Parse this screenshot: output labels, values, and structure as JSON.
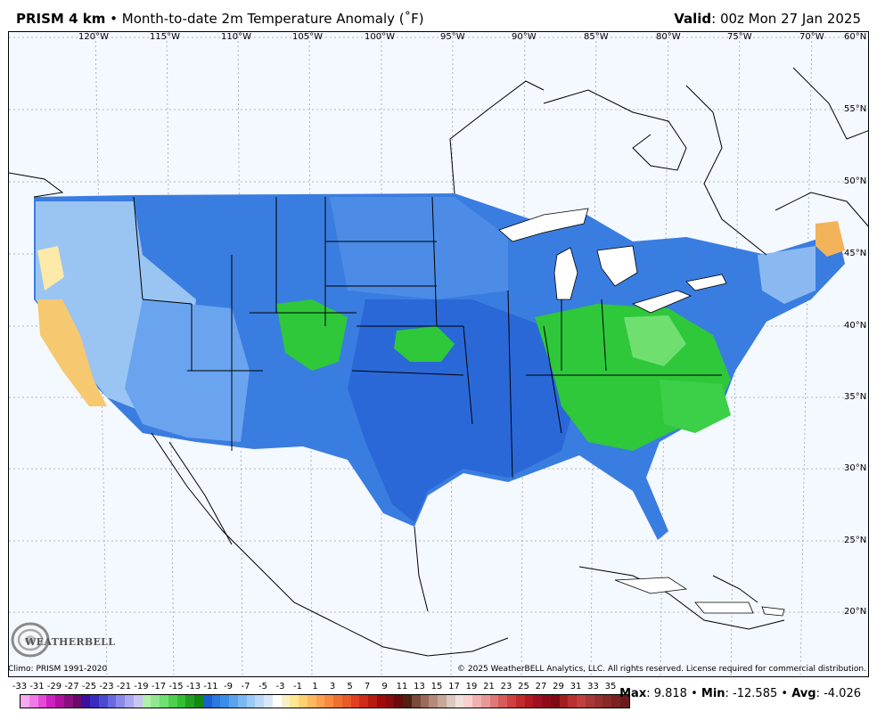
{
  "header": {
    "product": "PRISM 4 km",
    "bullet": "•",
    "subtitle": "Month-to-date 2m Temperature Anomaly (˚F)",
    "valid_label": "Valid",
    "valid_value": ": 00z Mon 27 Jan 2025"
  },
  "map": {
    "longitude_labels": [
      "120°W",
      "115°W",
      "110°W",
      "105°W",
      "100°W",
      "95°W",
      "90°W",
      "85°W",
      "80°W",
      "75°W",
      "70°W"
    ],
    "latitude_labels": [
      "60°N",
      "55°N",
      "50°N",
      "45°N",
      "40°N",
      "35°N",
      "30°N",
      "25°N",
      "20°N"
    ],
    "colors": {
      "background": "#f4f8ff",
      "blue_mid": "#3a7de0",
      "blue_dark": "#1f5fd0",
      "blue_light": "#7fb3f0",
      "green": "#2ec83a",
      "green_light": "#6fe070",
      "orange": "#f2b35a",
      "yellow": "#fde9a8"
    }
  },
  "logo": {
    "text": "WEATHERBELL"
  },
  "footer": {
    "climo": "Climo: PRISM 1991-2020",
    "copyright": "© 2025 WeatherBELL Analytics, LLC. All rights reserved. License required for commercial distribution."
  },
  "scale": {
    "labels": [
      "-33",
      "-31",
      "-29",
      "-27",
      "-25",
      "-23",
      "-21",
      "-19",
      "-17",
      "-15",
      "-13",
      "-11",
      "-9",
      "-7",
      "-5",
      "-3",
      "-1",
      "1",
      "3",
      "5",
      "7",
      "9",
      "11",
      "13",
      "15",
      "17",
      "19",
      "21",
      "23",
      "25",
      "27",
      "29",
      "31",
      "33",
      "35"
    ],
    "colors": [
      "#f7a8f0",
      "#f07ae8",
      "#e64ad8",
      "#d020c0",
      "#b0109f",
      "#8a1080",
      "#6a0a6a",
      "#3a10a0",
      "#3a2ac0",
      "#4a4ad0",
      "#6a6ae0",
      "#8a8ae8",
      "#aaa8f0",
      "#c8c4f5",
      "#b0f0a8",
      "#90e890",
      "#70e070",
      "#4ed04e",
      "#30c030",
      "#20a020",
      "#108a10",
      "#1a60d0",
      "#2a78e0",
      "#3a8ee8",
      "#5aa4ee",
      "#7ab8f2",
      "#9acaf5",
      "#bad8f8",
      "#d8e8fa",
      "#ffffff",
      "#f8f0c8",
      "#fde890",
      "#fed070",
      "#fdb860",
      "#fca050",
      "#f88a40",
      "#f07030",
      "#e85a28",
      "#e04020",
      "#d02a18",
      "#b81a10",
      "#a00a08",
      "#8a0a10",
      "#6a0a0a",
      "#502010",
      "#7a4a3a",
      "#9a6a5a",
      "#b48a7a",
      "#c8a898",
      "#dcc8c0",
      "#f0e0dc",
      "#f8d0d0",
      "#f0b0b0",
      "#e89898",
      "#e07878",
      "#d85a5a",
      "#d04040",
      "#c02a2a",
      "#b01a20",
      "#a01020",
      "#900a18",
      "#800a14",
      "#a02020",
      "#b83030",
      "#c04040",
      "#a83838",
      "#983030",
      "#882828",
      "#7a2020",
      "#6a1a1a"
    ]
  },
  "stats": {
    "max_label": "Max",
    "max_value": ": 9.818",
    "sep1": " • ",
    "min_label": "Min",
    "min_value": ": -12.585",
    "sep2": " • ",
    "avg_label": "Avg",
    "avg_value": ": -4.026"
  }
}
